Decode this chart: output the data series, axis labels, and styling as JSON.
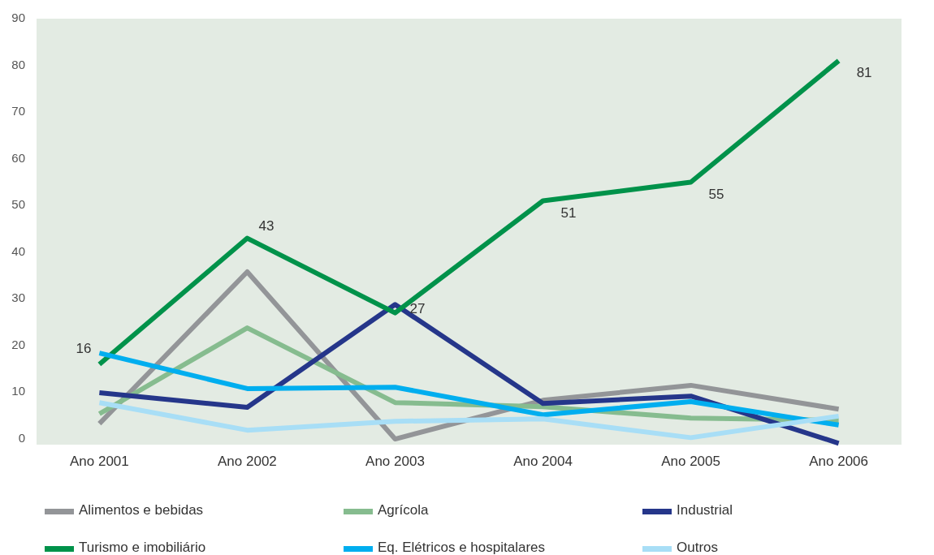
{
  "chart_data": {
    "type": "line",
    "categories": [
      "Ano 2001",
      "Ano 2002",
      "Ano 2003",
      "Ano 2004",
      "Ano 2005",
      "Ano 2006"
    ],
    "ylim": [
      -1.2,
      90
    ],
    "yticks": [
      0,
      10,
      20,
      30,
      40,
      50,
      60,
      70,
      80,
      90
    ],
    "grid": false,
    "legend": "bottom",
    "marker": "none",
    "line_style": "solid",
    "series": [
      {
        "name": "Alimentos e bebidas",
        "color": "#939598",
        "values": [
          3.3,
          35.8,
          0,
          8.3,
          11.5,
          6.4
        ]
      },
      {
        "name": "Agrícola",
        "color": "#86bc8f",
        "values": [
          5.4,
          23.8,
          7.8,
          6.9,
          4.5,
          4
        ]
      },
      {
        "name": "Industrial",
        "color": "#25368a",
        "values": [
          9.9,
          6.8,
          28.8,
          7.6,
          9.2,
          -0.9
        ]
      },
      {
        "name": "Turismo e imobiliário",
        "color": "#00924a",
        "values": [
          16,
          43,
          27,
          51,
          55,
          81
        ],
        "value_labels": [
          "16",
          "43",
          "27",
          "51",
          "55",
          "81"
        ]
      },
      {
        "name": "Eq. Elétricos e hospitalares",
        "color": "#00aeef",
        "values": [
          18.4,
          10.8,
          11.1,
          5.2,
          8,
          3
        ]
      },
      {
        "name": "Outros",
        "color": "#a8def6",
        "values": [
          7.8,
          1.9,
          3.8,
          4.3,
          0.3,
          4.9
        ]
      }
    ]
  }
}
